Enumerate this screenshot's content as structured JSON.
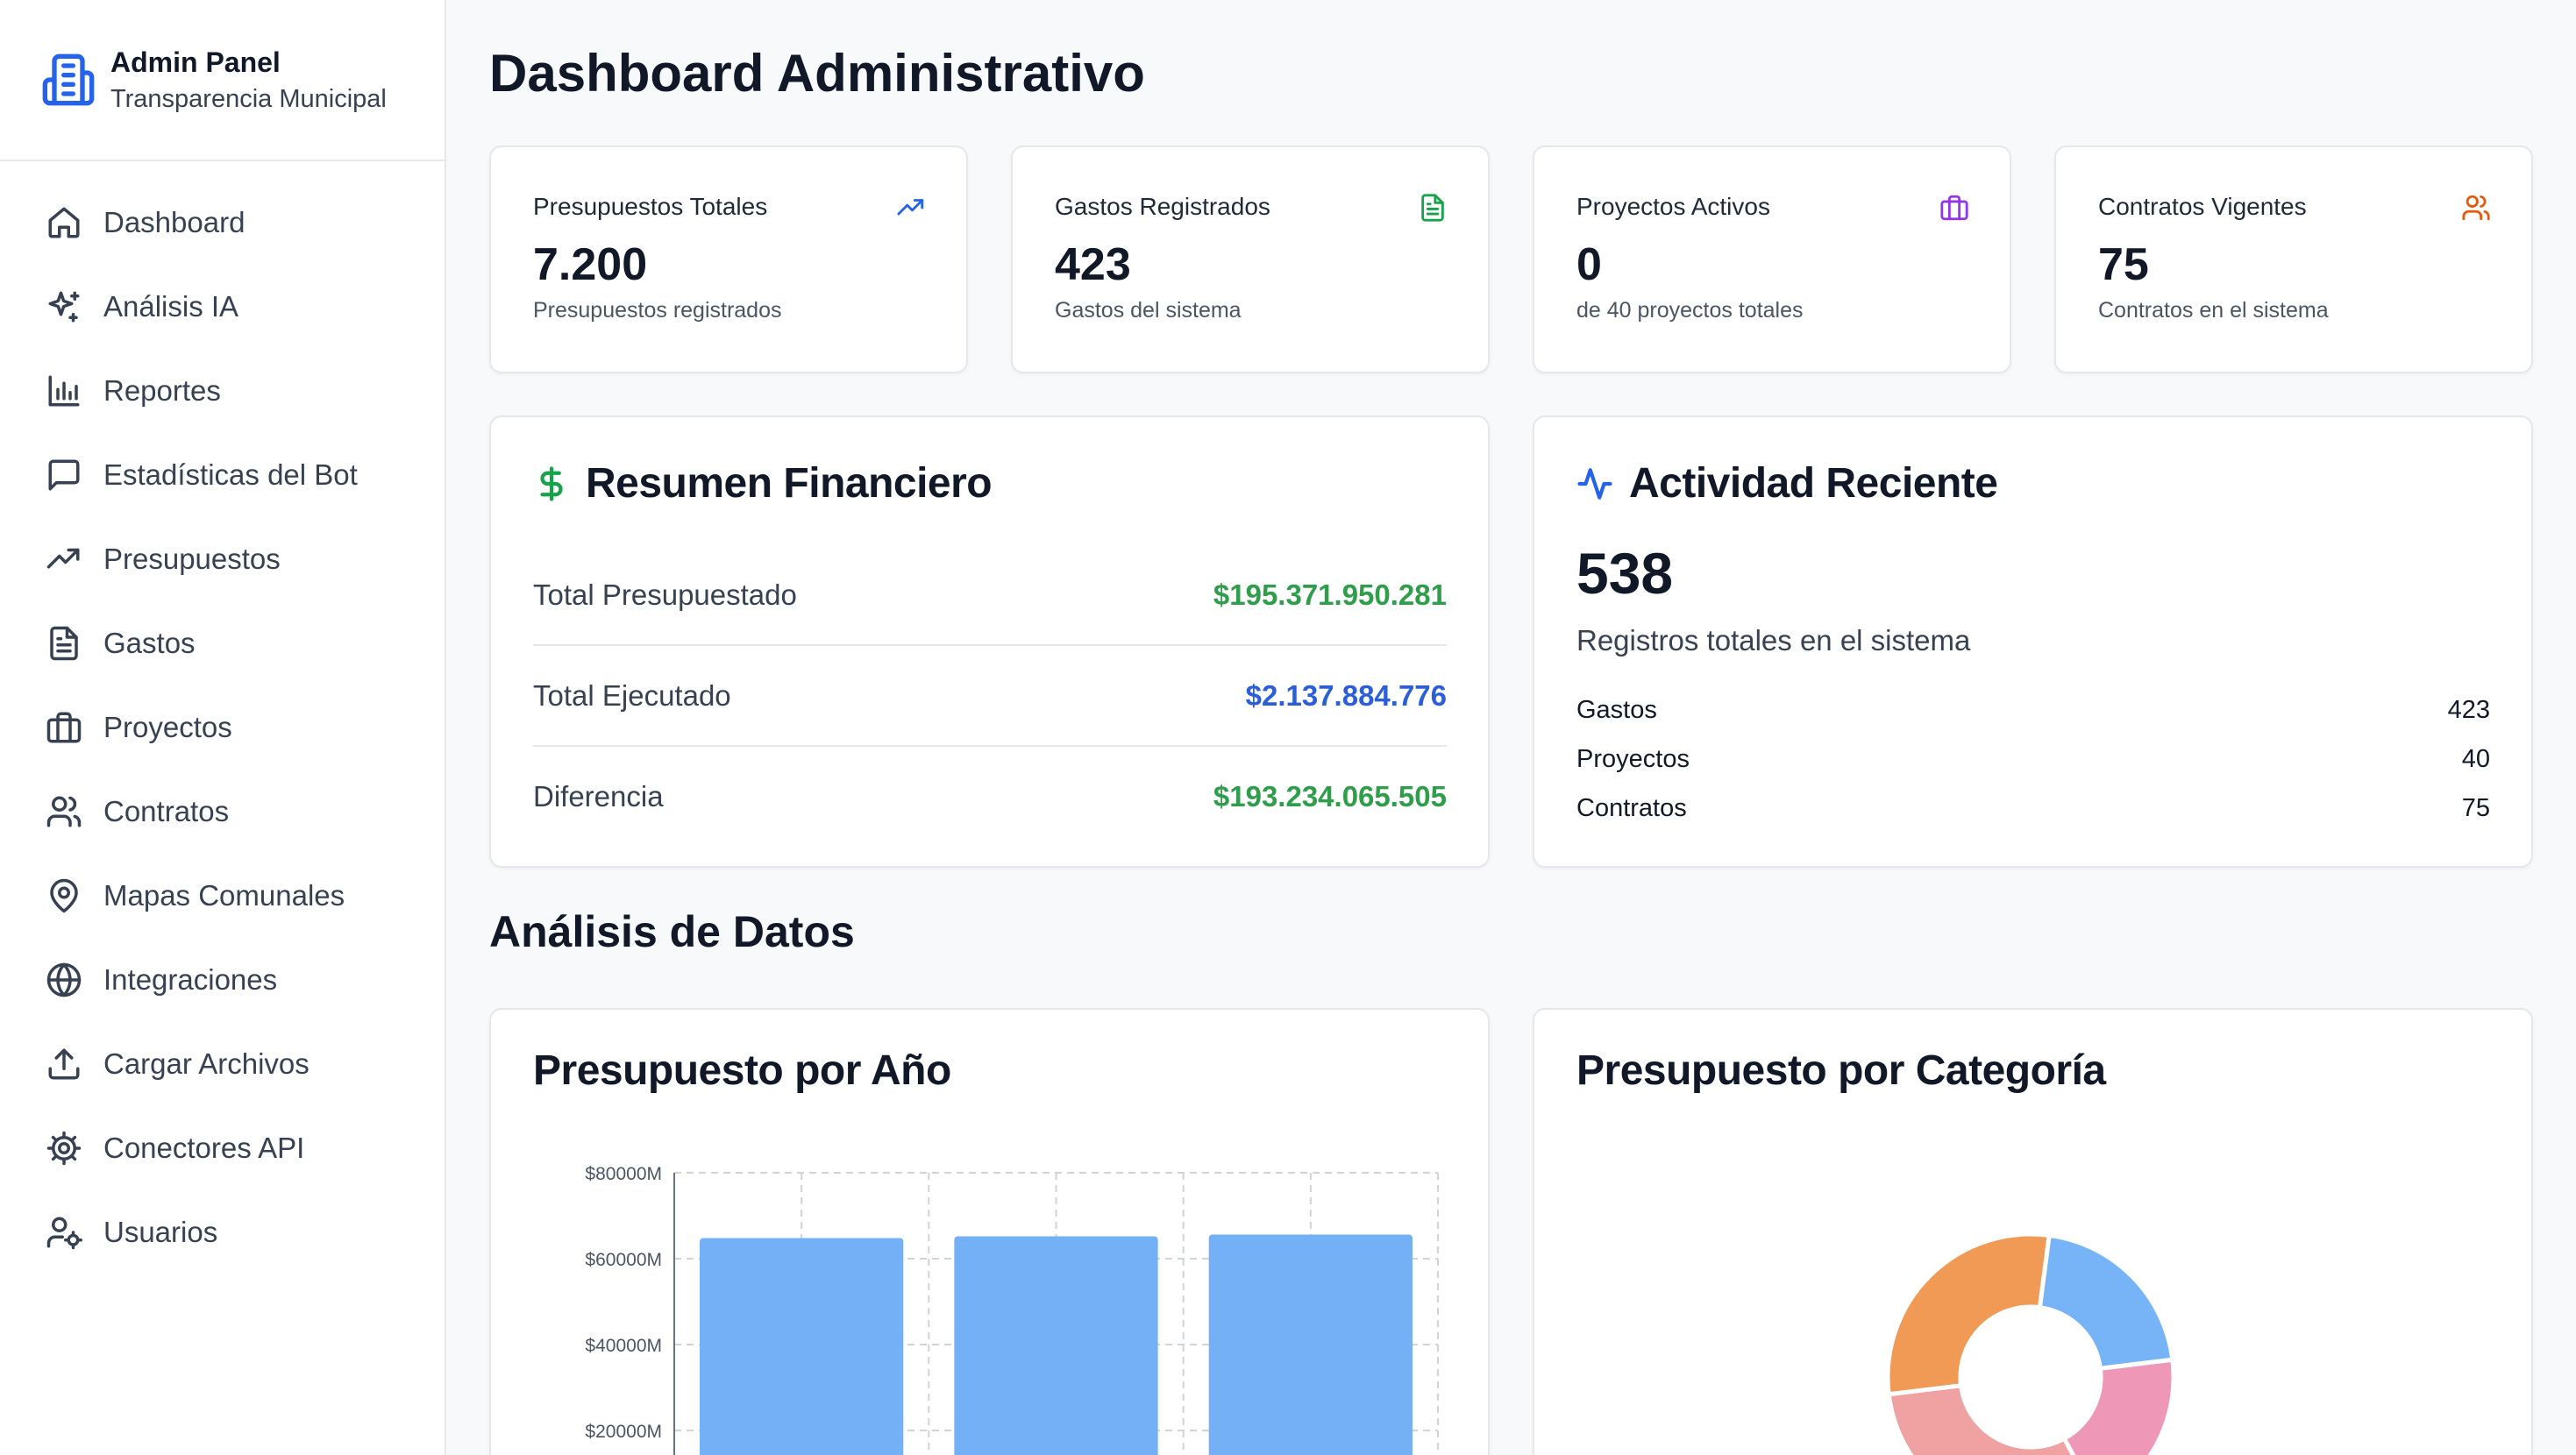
{
  "brand": {
    "title": "Admin Panel",
    "subtitle": "Transparencia Municipal"
  },
  "nav": [
    {
      "label": "Dashboard",
      "icon": "home-icon"
    },
    {
      "label": "Análisis IA",
      "icon": "sparkles-icon"
    },
    {
      "label": "Reportes",
      "icon": "bar-chart-icon"
    },
    {
      "label": "Estadísticas del Bot",
      "icon": "message-square-icon"
    },
    {
      "label": "Presupuestos",
      "icon": "trending-up-icon"
    },
    {
      "label": "Gastos",
      "icon": "file-text-icon"
    },
    {
      "label": "Proyectos",
      "icon": "briefcase-icon"
    },
    {
      "label": "Contratos",
      "icon": "users-icon"
    },
    {
      "label": "Mapas Comunales",
      "icon": "map-pin-icon"
    },
    {
      "label": "Integraciones",
      "icon": "globe-icon"
    },
    {
      "label": "Cargar Archivos",
      "icon": "upload-icon"
    },
    {
      "label": "Conectores API",
      "icon": "settings-icon"
    },
    {
      "label": "Usuarios",
      "icon": "user-cog-icon"
    }
  ],
  "page": {
    "title": "Dashboard Administrativo"
  },
  "stats": [
    {
      "label": "Presupuestos Totales",
      "value": "7.200",
      "sub": "Presupuestos registrados",
      "icon": "trending-up-icon",
      "color": "#2563eb"
    },
    {
      "label": "Gastos Registrados",
      "value": "423",
      "sub": "Gastos del sistema",
      "icon": "file-text-icon",
      "color": "#16a34a"
    },
    {
      "label": "Proyectos Activos",
      "value": "0",
      "sub": "de 40 proyectos totales",
      "icon": "briefcase-icon",
      "color": "#9333ea"
    },
    {
      "label": "Contratos Vigentes",
      "value": "75",
      "sub": "Contratos en el sistema",
      "icon": "users-icon",
      "color": "#ea580c"
    }
  ],
  "financial": {
    "title": "Resumen Financiero",
    "rows": [
      {
        "label": "Total Presupuestado",
        "value": "$195.371.950.281",
        "color": "#2e9e4b"
      },
      {
        "label": "Total Ejecutado",
        "value": "$2.137.884.776",
        "color": "#2b5fd9"
      },
      {
        "label": "Diferencia",
        "value": "$193.234.065.505",
        "color": "#2e9e4b"
      }
    ]
  },
  "activity": {
    "title": "Actividad Reciente",
    "total": "538",
    "total_label": "Registros totales en el sistema",
    "rows": [
      {
        "label": "Gastos",
        "value": "423"
      },
      {
        "label": "Proyectos",
        "value": "40"
      },
      {
        "label": "Contratos",
        "value": "75"
      }
    ]
  },
  "analysis": {
    "title": "Análisis de Datos"
  },
  "chart_data": [
    {
      "type": "bar",
      "title": "Presupuesto por Año",
      "categories": [
        "",
        "",
        ""
      ],
      "values": [
        64800,
        65200,
        65600
      ],
      "ylim": [
        0,
        80000
      ],
      "yticks": [
        20000,
        40000,
        60000,
        80000
      ],
      "ytick_labels": [
        "$20000M",
        "$40000M",
        "$60000M",
        "$80000M"
      ],
      "color": "#74b0f6"
    },
    {
      "type": "pie",
      "title": "Presupuesto por Categoría",
      "donut": true,
      "slices": [
        {
          "value": 21,
          "color": "#77b4f7"
        },
        {
          "value": 19,
          "color": "#ef97b7"
        },
        {
          "value": 31,
          "color": "#f0a2a2"
        },
        {
          "value": 29,
          "color": "#f19a56"
        }
      ]
    }
  ]
}
